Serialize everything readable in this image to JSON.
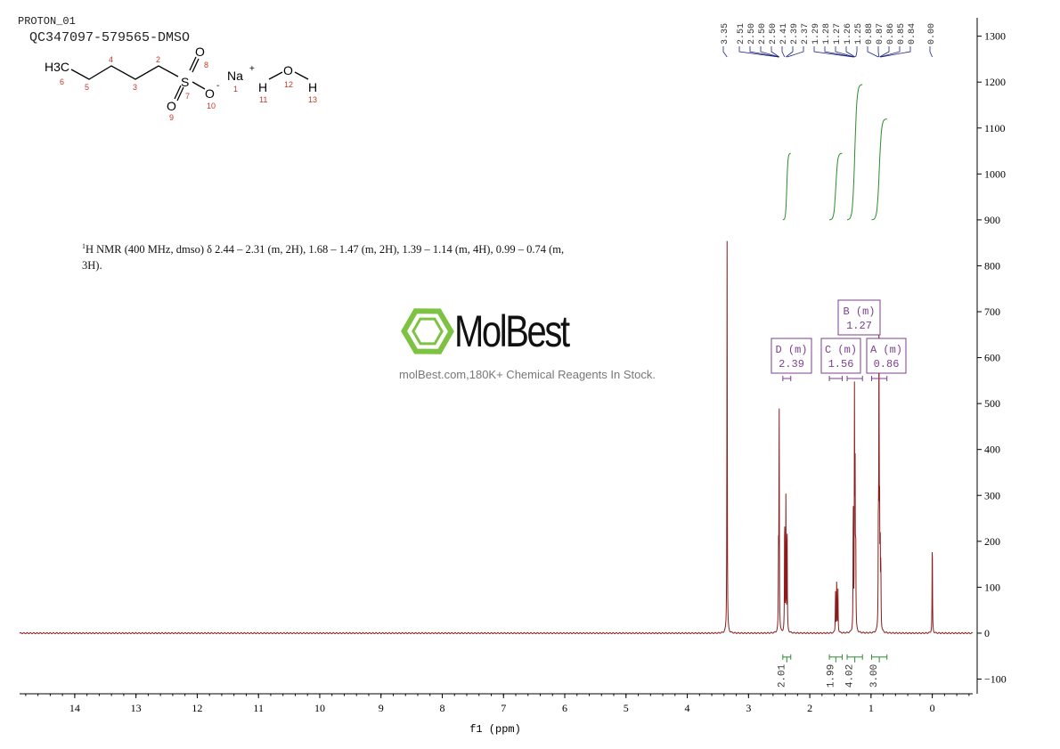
{
  "header": {
    "experiment": "PROTON_01",
    "sample": "QC347097-579565-DMSO"
  },
  "structure": {
    "atoms": [
      "H3C",
      "Na",
      "+",
      "O",
      "O",
      "S",
      "O",
      "-",
      "H",
      "O",
      "H"
    ],
    "numbers": [
      "6",
      "5",
      "4",
      "3",
      "2",
      "8",
      "7",
      "9",
      "10",
      "1",
      "11",
      "12",
      "13"
    ]
  },
  "nmr_text": {
    "prefix_sup": "1",
    "body": "H NMR (400 MHz, dmso) δ 2.44 – 2.31 (m, 2H), 1.68 – 1.47 (m, 2H), 1.39 – 1.14 (m, 4H), 0.99 – 0.74 (m, 3H)."
  },
  "watermark": {
    "brand": "MolBest",
    "tagline": "molBest.com,180K+ Chemical Reagents In Stock.",
    "brand_color": "#7dc242"
  },
  "chart_data": {
    "type": "line",
    "xlabel": "f1 (ppm)",
    "xlim": [
      14.9,
      -0.66
    ],
    "ylim": [
      -132,
      1340
    ],
    "x_reversed": true,
    "xticks": [
      14,
      13,
      12,
      11,
      10,
      9,
      8,
      7,
      6,
      5,
      4,
      3,
      2,
      1,
      0
    ],
    "yticks": [
      -100,
      0,
      100,
      200,
      300,
      400,
      500,
      600,
      700,
      800,
      900,
      1000,
      1100,
      1200,
      1300
    ],
    "y_axis_side": "right",
    "grid": false,
    "spectrum_color": "#8b1a1a",
    "integral_color": "#2e8b2e",
    "label_color": "#1a237e",
    "multiplet_color": "#7b3f8f",
    "peaks": [
      {
        "ppm": 3.35,
        "height": 855
      },
      {
        "ppm": 2.51,
        "height": 160
      },
      {
        "ppm": 2.5,
        "height": 495
      },
      {
        "ppm": 2.41,
        "height": 265
      },
      {
        "ppm": 2.39,
        "height": 290
      },
      {
        "ppm": 2.37,
        "height": 250
      },
      {
        "ppm": 1.58,
        "height": 90
      },
      {
        "ppm": 1.56,
        "height": 120
      },
      {
        "ppm": 1.54,
        "height": 95
      },
      {
        "ppm": 1.29,
        "height": 290
      },
      {
        "ppm": 1.27,
        "height": 510
      },
      {
        "ppm": 1.26,
        "height": 320
      },
      {
        "ppm": 1.25,
        "height": 190
      },
      {
        "ppm": 0.88,
        "height": 230
      },
      {
        "ppm": 0.87,
        "height": 680
      },
      {
        "ppm": 0.86,
        "height": 220
      },
      {
        "ppm": 0.85,
        "height": 180
      },
      {
        "ppm": 0.84,
        "height": 140
      },
      {
        "ppm": 0.0,
        "height": 215
      }
    ],
    "peak_labels": [
      "3.35",
      "2.51",
      "2.50",
      "2.50",
      "2.50",
      "2.41",
      "2.39",
      "2.37",
      "1.29",
      "1.28",
      "1.27",
      "1.26",
      "1.25",
      "0.88",
      "0.87",
      "0.86",
      "0.85",
      "0.84",
      "0.00"
    ],
    "integrals": [
      {
        "from": 2.44,
        "to": 2.31,
        "value": "2.01",
        "curve_start": 900,
        "curve_end": 1045
      },
      {
        "from": 1.68,
        "to": 1.47,
        "value": "1.99",
        "curve_start": 900,
        "curve_end": 1045
      },
      {
        "from": 1.39,
        "to": 1.14,
        "value": "4.02",
        "curve_start": 900,
        "curve_end": 1195
      },
      {
        "from": 0.99,
        "to": 0.74,
        "value": "3.00",
        "curve_start": 900,
        "curve_end": 1120
      }
    ],
    "multiplets": [
      {
        "letter": "D",
        "type": "(m)",
        "shift": "2.39"
      },
      {
        "letter": "C",
        "type": "(m)",
        "shift": "1.56"
      },
      {
        "letter": "B",
        "type": "(m)",
        "shift": "1.27"
      },
      {
        "letter": "A",
        "type": "(m)",
        "shift": "0.86"
      }
    ]
  }
}
